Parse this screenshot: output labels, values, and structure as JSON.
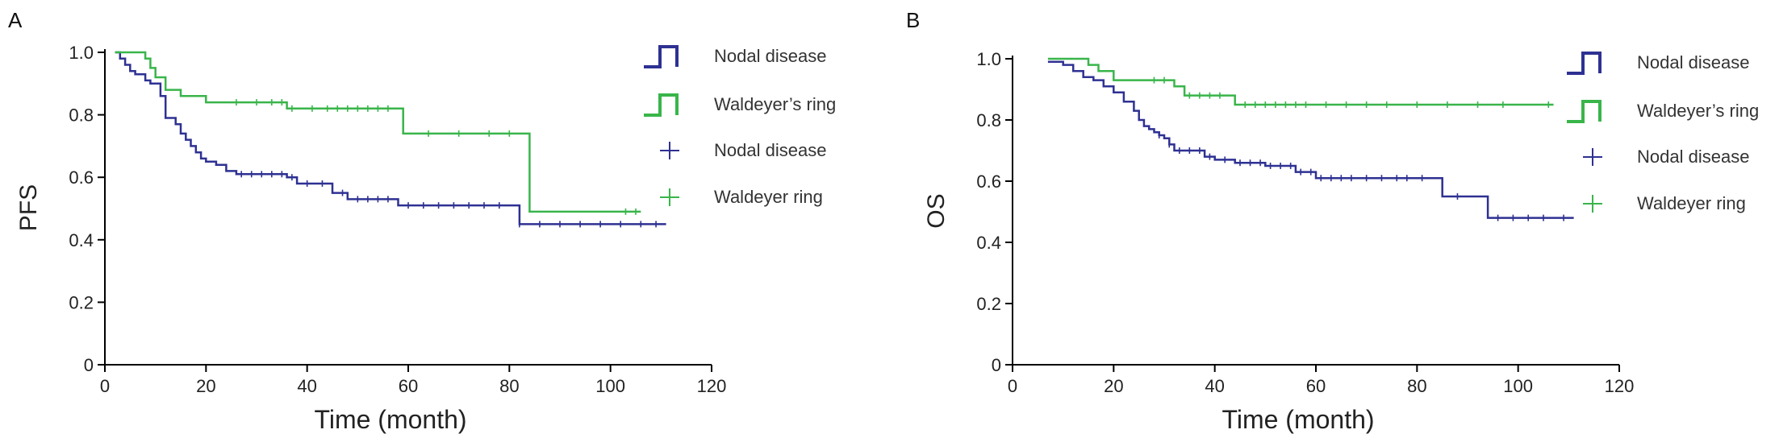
{
  "chart_data": [
    {
      "type": "line",
      "panel_label": "A",
      "xlabel": "Time (month)",
      "ylabel": "PFS",
      "xlim": [
        0,
        120
      ],
      "ylim": [
        0,
        1.0
      ],
      "x_ticks": [
        "0",
        "20",
        "40",
        "60",
        "80",
        "100",
        "120"
      ],
      "y_ticks": [
        "0",
        "0.2",
        "0.4",
        "0.6",
        "0.8",
        "1.0"
      ],
      "legend": [
        {
          "label": "Nodal disease",
          "symbol": "step",
          "color": "#2e3192"
        },
        {
          "label": "Waldeyer’s ring",
          "symbol": "step",
          "color": "#39b54a"
        },
        {
          "label": "Nodal disease",
          "symbol": "cross",
          "color": "#2e3192"
        },
        {
          "label": "Waldeyer ring",
          "symbol": "cross",
          "color": "#39b54a"
        }
      ],
      "series": [
        {
          "name": "Nodal disease",
          "color": "#2e3192",
          "x": [
            2,
            3,
            4,
            5,
            6,
            8,
            9,
            11,
            12,
            14,
            15,
            16,
            17,
            18,
            19,
            20,
            22,
            24,
            26,
            36,
            38,
            45,
            48,
            58,
            82,
            111
          ],
          "y": [
            1.0,
            0.98,
            0.96,
            0.94,
            0.93,
            0.91,
            0.9,
            0.86,
            0.79,
            0.77,
            0.74,
            0.72,
            0.7,
            0.68,
            0.66,
            0.65,
            0.64,
            0.62,
            0.61,
            0.6,
            0.58,
            0.55,
            0.53,
            0.51,
            0.45,
            0.45
          ],
          "censor_x": [
            27,
            29,
            31,
            33,
            35,
            37,
            40,
            43,
            47,
            50,
            52,
            54,
            56,
            60,
            63,
            66,
            69,
            72,
            75,
            78,
            82,
            86,
            90,
            94,
            98,
            102,
            106,
            109
          ]
        },
        {
          "name": "Waldeyer ring",
          "color": "#39b54a",
          "x": [
            2,
            8,
            9,
            10,
            12,
            15,
            20,
            36,
            59,
            84,
            106
          ],
          "y": [
            1.0,
            0.98,
            0.95,
            0.92,
            0.88,
            0.86,
            0.84,
            0.82,
            0.74,
            0.49,
            0.49
          ],
          "censor_x": [
            26,
            30,
            33,
            35,
            37,
            41,
            44,
            46,
            48,
            50,
            52,
            54,
            56,
            64,
            70,
            76,
            80,
            103,
            105
          ]
        }
      ]
    },
    {
      "type": "line",
      "panel_label": "B",
      "xlabel": "Time (month)",
      "ylabel": "OS",
      "xlim": [
        0,
        120
      ],
      "ylim": [
        0,
        1.0
      ],
      "x_ticks": [
        "0",
        "20",
        "40",
        "60",
        "80",
        "100",
        "120"
      ],
      "y_ticks": [
        "0",
        "0.2",
        "0.4",
        "0.6",
        "0.8",
        "1.0"
      ],
      "legend": [
        {
          "label": "Nodal disease",
          "symbol": "step",
          "color": "#2e3192"
        },
        {
          "label": "Waldeyer’s ring",
          "symbol": "step",
          "color": "#39b54a"
        },
        {
          "label": "Nodal disease",
          "symbol": "cross",
          "color": "#2e3192"
        },
        {
          "label": "Waldeyer ring",
          "symbol": "cross",
          "color": "#39b54a"
        }
      ],
      "series": [
        {
          "name": "Nodal disease",
          "color": "#2e3192",
          "x": [
            7,
            10,
            12,
            14,
            16,
            18,
            20,
            22,
            24,
            25,
            26,
            27,
            28,
            29,
            30,
            31,
            32,
            38,
            40,
            44,
            50,
            56,
            60,
            85,
            94,
            111
          ],
          "y": [
            0.99,
            0.98,
            0.96,
            0.94,
            0.93,
            0.91,
            0.89,
            0.86,
            0.83,
            0.8,
            0.78,
            0.77,
            0.76,
            0.75,
            0.74,
            0.72,
            0.7,
            0.68,
            0.67,
            0.66,
            0.65,
            0.63,
            0.61,
            0.55,
            0.48,
            0.48
          ],
          "censor_x": [
            29,
            31,
            33,
            35,
            37,
            39,
            42,
            45,
            47,
            49,
            51,
            53,
            55,
            57,
            59,
            61,
            63,
            65,
            67,
            70,
            73,
            76,
            78,
            81,
            88,
            96,
            99,
            102,
            105,
            109
          ]
        },
        {
          "name": "Waldeyer ring",
          "color": "#39b54a",
          "x": [
            7,
            15,
            17,
            20,
            32,
            34,
            44,
            107
          ],
          "y": [
            1.0,
            0.98,
            0.96,
            0.93,
            0.91,
            0.88,
            0.85,
            0.85
          ],
          "censor_x": [
            28,
            30,
            35,
            37,
            39,
            41,
            46,
            48,
            50,
            52,
            54,
            56,
            58,
            62,
            66,
            70,
            74,
            80,
            86,
            92,
            97,
            106
          ]
        }
      ]
    }
  ]
}
